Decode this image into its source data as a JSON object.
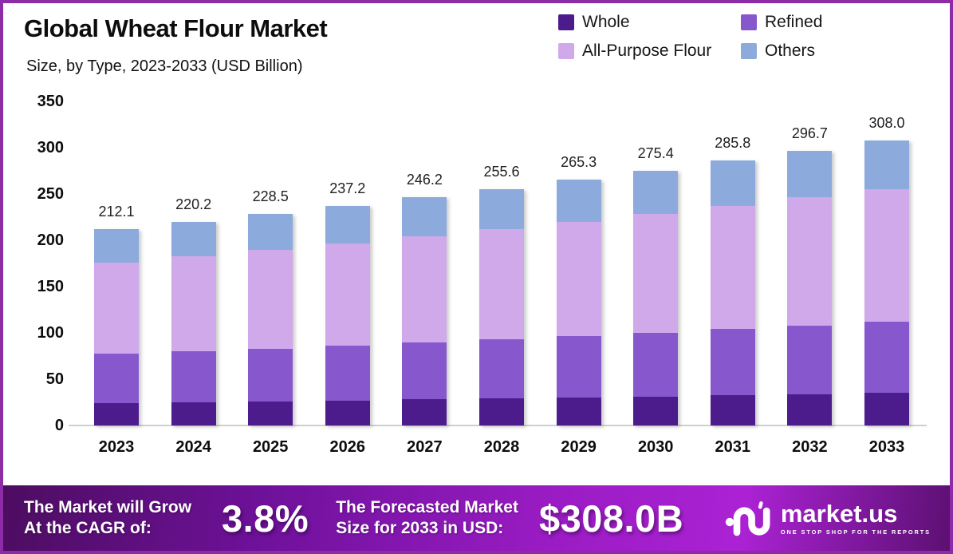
{
  "header": {
    "title": "Global Wheat Flour Market",
    "subtitle": "Size, by Type, 2023-2033 (USD Billion)"
  },
  "chart_data": {
    "type": "bar",
    "stacked": true,
    "title": "Global Wheat Flour Market Size, by Type, 2023-2033 (USD Billion)",
    "categories": [
      "2023",
      "2024",
      "2025",
      "2026",
      "2027",
      "2028",
      "2029",
      "2030",
      "2031",
      "2032",
      "2033"
    ],
    "series": [
      {
        "name": "Whole",
        "color": "#4c1b8c",
        "values": [
          24.2,
          25.1,
          26.0,
          27.0,
          28.1,
          29.1,
          30.2,
          31.4,
          32.6,
          33.8,
          35.1
        ]
      },
      {
        "name": "Refined",
        "color": "#8757cd",
        "values": [
          53.0,
          55.1,
          57.1,
          59.3,
          61.6,
          63.9,
          66.3,
          68.9,
          71.5,
          74.2,
          77.0
        ]
      },
      {
        "name": "All-Purpose Flour",
        "color": "#d0a9ea",
        "values": [
          98.8,
          102.6,
          106.5,
          110.5,
          114.7,
          119.1,
          123.6,
          128.3,
          133.2,
          138.3,
          143.5
        ]
      },
      {
        "name": "Others",
        "color": "#8caadc",
        "values": [
          36.1,
          37.4,
          38.9,
          40.4,
          41.8,
          43.5,
          45.2,
          46.8,
          48.5,
          50.4,
          52.4
        ]
      }
    ],
    "totals": [
      212.1,
      220.2,
      228.5,
      237.2,
      246.2,
      255.6,
      265.3,
      275.4,
      285.8,
      296.7,
      308.0
    ],
    "xlabel": "",
    "ylabel": "",
    "ylim": [
      0,
      350
    ],
    "yticks": [
      0,
      50,
      100,
      150,
      200,
      250,
      300,
      350
    ],
    "grid": false,
    "legend_position": "top-right"
  },
  "footer": {
    "cagr_line1": "The Market will Grow",
    "cagr_line2": "At the CAGR of:",
    "cagr_value": "3.8%",
    "forecast_line1": "The Forecasted Market",
    "forecast_line2": "Size for 2033 in USD:",
    "forecast_value": "$308.0B",
    "brand_name": "market.us",
    "brand_tagline": "ONE STOP SHOP FOR THE REPORTS"
  }
}
